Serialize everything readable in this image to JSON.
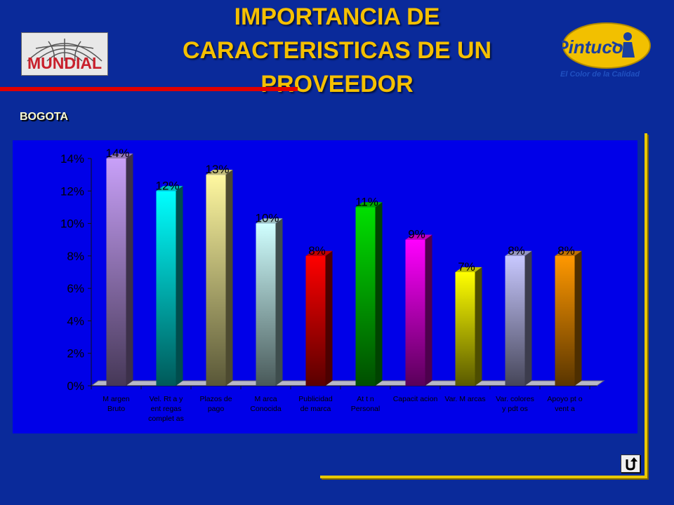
{
  "header": {
    "title_line1": "IMPORTANCIA DE",
    "title_line2": "CARACTERISTICAS DE UN",
    "title_line3": "PROVEEDOR",
    "logo_left": "MUNDIAL",
    "logo_right": "Pintuco",
    "tagline": "El Color de la Calidad"
  },
  "subtitle": "BOGOTA",
  "colors": {
    "background": "#0a2a9a",
    "title": "#f5c000",
    "plot_area": "#0000e8",
    "frame": "#e8c800"
  },
  "nav": {
    "return_icon": "return-arrow-icon"
  },
  "chart_data": {
    "type": "bar",
    "categories": [
      [
        "M argen",
        "Bruto"
      ],
      [
        "Vel. Rt a y",
        "ent regas",
        "complet as"
      ],
      [
        "Plazos de",
        "pago"
      ],
      [
        "M arca",
        "Conocida"
      ],
      [
        "Publicidad",
        "de marca"
      ],
      [
        "At t n",
        "Personal"
      ],
      [
        "Capacit acion"
      ],
      [
        "Var. M arcas"
      ],
      [
        "Var. colores",
        "y pdt os"
      ],
      [
        "Apoyo pt o",
        "vent a"
      ]
    ],
    "values": [
      14,
      12,
      13,
      10,
      8,
      11,
      9,
      7,
      8,
      8
    ],
    "data_labels": [
      "14%",
      "12%",
      "13%",
      "10%",
      "8%",
      "11%",
      "9%",
      "7%",
      "8%",
      "8%"
    ],
    "bar_colors": [
      "#c8a0f8",
      "#00ffff",
      "#fff8a0",
      "#d0ffff",
      "#ff0000",
      "#00e000",
      "#ff00ff",
      "#ffff00",
      "#c8c8ff",
      "#ff9800"
    ],
    "y_ticks": [
      "0%",
      "2%",
      "4%",
      "6%",
      "8%",
      "10%",
      "12%",
      "14%"
    ],
    "ylim": [
      0,
      14
    ],
    "xlabel": "",
    "ylabel": "",
    "grid": false,
    "legend": "none"
  }
}
